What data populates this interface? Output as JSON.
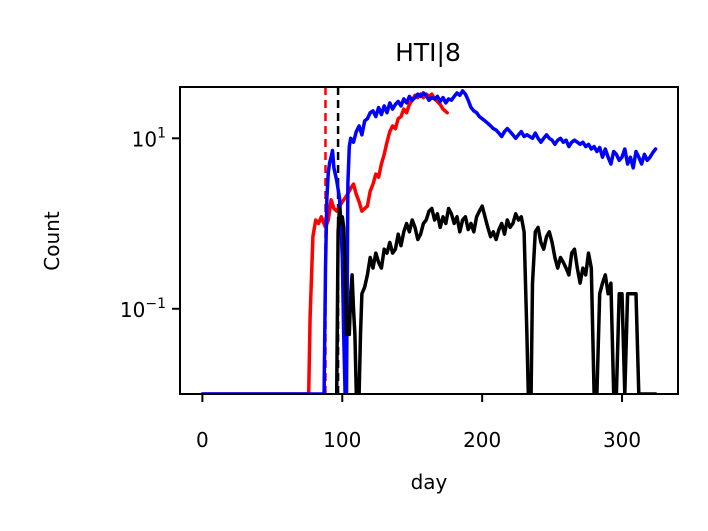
{
  "chart_data": {
    "type": "line",
    "title": "HTI|8",
    "xlabel": "day",
    "ylabel": "Count",
    "yscale": "log",
    "xlim": [
      -16,
      340
    ],
    "ylim": [
      0.01,
      40
    ],
    "x_ticks": [
      0,
      100,
      200,
      300
    ],
    "x_tick_labels": [
      "0",
      "100",
      "200",
      "300"
    ],
    "y_ticks": [
      10,
      0.1
    ],
    "y_tick_bases": [
      "10",
      "10"
    ],
    "y_tick_exps": [
      "1",
      "−1"
    ],
    "grid": false,
    "legend": "none",
    "vlines": [
      {
        "x": 88,
        "color": "#ff0000",
        "style": "dashed"
      },
      {
        "x": 97,
        "color": "#000000",
        "style": "dashed"
      }
    ],
    "series": [
      {
        "color": "#ff0000",
        "points": [
          [
            0,
            0.01
          ],
          [
            76,
            0.01
          ],
          [
            77,
            0.08
          ],
          [
            79,
            0.7
          ],
          [
            81,
            1.1
          ],
          [
            83,
            1.0
          ],
          [
            85,
            1.2
          ],
          [
            88,
            0.9
          ],
          [
            90,
            1.1
          ],
          [
            92,
            1.9
          ],
          [
            94,
            1.5
          ],
          [
            96,
            1.4
          ],
          [
            98,
            1.6
          ],
          [
            100,
            1.8
          ],
          [
            103,
            2.1
          ],
          [
            106,
            2.6
          ],
          [
            108,
            2.9
          ],
          [
            110,
            2.2
          ],
          [
            112,
            1.8
          ],
          [
            114,
            1.4
          ],
          [
            116,
            1.5
          ],
          [
            118,
            1.6
          ],
          [
            120,
            2.4
          ],
          [
            122,
            2.9
          ],
          [
            124,
            3.8
          ],
          [
            126,
            3.5
          ],
          [
            128,
            5.0
          ],
          [
            130,
            6.5
          ],
          [
            132,
            9
          ],
          [
            134,
            12
          ],
          [
            136,
            14
          ],
          [
            138,
            13
          ],
          [
            140,
            17
          ],
          [
            142,
            18
          ],
          [
            144,
            22
          ],
          [
            146,
            20
          ],
          [
            148,
            25
          ],
          [
            150,
            28
          ],
          [
            152,
            32
          ],
          [
            154,
            30
          ],
          [
            156,
            33
          ],
          [
            158,
            30
          ],
          [
            160,
            33
          ],
          [
            162,
            31
          ],
          [
            164,
            33
          ],
          [
            166,
            29
          ],
          [
            168,
            27
          ],
          [
            170,
            25
          ],
          [
            172,
            22
          ],
          [
            175,
            20
          ]
        ]
      },
      {
        "color": "#0000ff",
        "points": [
          [
            0,
            0.01
          ],
          [
            87,
            0.01
          ],
          [
            88,
            0.3
          ],
          [
            89,
            2.0
          ],
          [
            90,
            4.0
          ],
          [
            91,
            5.2
          ],
          [
            92,
            6.0
          ],
          [
            93,
            7.2
          ],
          [
            94,
            4.5
          ],
          [
            96,
            3.2
          ],
          [
            98,
            2.0
          ],
          [
            99,
            1.0
          ],
          [
            100,
            0.4
          ],
          [
            101,
            0.05
          ],
          [
            102,
            0.01
          ],
          [
            103,
            0.01
          ],
          [
            104,
            3.0
          ],
          [
            105,
            8.0
          ],
          [
            106,
            10
          ],
          [
            108,
            9.0
          ],
          [
            110,
            12
          ],
          [
            112,
            14
          ],
          [
            114,
            11
          ],
          [
            116,
            16
          ],
          [
            118,
            17
          ],
          [
            120,
            20
          ],
          [
            122,
            21
          ],
          [
            124,
            18
          ],
          [
            126,
            23
          ],
          [
            128,
            19
          ],
          [
            130,
            24
          ],
          [
            132,
            20
          ],
          [
            134,
            26
          ],
          [
            136,
            22
          ],
          [
            138,
            25
          ],
          [
            140,
            27
          ],
          [
            142,
            24
          ],
          [
            144,
            29
          ],
          [
            146,
            26
          ],
          [
            148,
            31
          ],
          [
            150,
            28
          ],
          [
            152,
            30
          ],
          [
            154,
            33
          ],
          [
            156,
            31
          ],
          [
            158,
            34
          ],
          [
            160,
            32
          ],
          [
            162,
            28
          ],
          [
            164,
            30
          ],
          [
            166,
            29
          ],
          [
            168,
            31
          ],
          [
            170,
            27
          ],
          [
            172,
            30
          ],
          [
            174,
            26
          ],
          [
            176,
            29
          ],
          [
            178,
            28
          ],
          [
            180,
            31
          ],
          [
            182,
            34
          ],
          [
            184,
            32
          ],
          [
            186,
            36
          ],
          [
            188,
            33
          ],
          [
            190,
            28
          ],
          [
            192,
            23
          ],
          [
            194,
            21
          ],
          [
            196,
            20
          ],
          [
            198,
            18
          ],
          [
            200,
            17
          ],
          [
            202,
            16
          ],
          [
            204,
            15
          ],
          [
            206,
            14
          ],
          [
            208,
            13
          ],
          [
            210,
            12.5
          ],
          [
            212,
            11.5
          ],
          [
            214,
            10.5
          ],
          [
            216,
            12
          ],
          [
            218,
            13
          ],
          [
            220,
            12
          ],
          [
            222,
            11
          ],
          [
            224,
            10
          ],
          [
            226,
            11
          ],
          [
            228,
            12
          ],
          [
            230,
            10.5
          ],
          [
            232,
            11
          ],
          [
            234,
            10.5
          ],
          [
            236,
            10
          ],
          [
            238,
            11.5
          ],
          [
            240,
            10
          ],
          [
            242,
            9.0
          ],
          [
            244,
            10
          ],
          [
            246,
            11
          ],
          [
            248,
            10
          ],
          [
            250,
            9.5
          ],
          [
            252,
            8.5
          ],
          [
            254,
            9.5
          ],
          [
            256,
            10
          ],
          [
            258,
            9.0
          ],
          [
            260,
            9.5
          ],
          [
            262,
            8.0
          ],
          [
            264,
            9.0
          ],
          [
            266,
            9.5
          ],
          [
            268,
            9.0
          ],
          [
            270,
            8.5
          ],
          [
            272,
            9.0
          ],
          [
            274,
            8.0
          ],
          [
            276,
            8.5
          ],
          [
            278,
            7.5
          ],
          [
            280,
            8.0
          ],
          [
            282,
            7.0
          ],
          [
            284,
            7.8
          ],
          [
            286,
            6.0
          ],
          [
            288,
            7.5
          ],
          [
            290,
            6.0
          ],
          [
            292,
            5.0
          ],
          [
            294,
            7.0
          ],
          [
            296,
            6.5
          ],
          [
            298,
            5.5
          ],
          [
            300,
            6.0
          ],
          [
            302,
            7.5
          ],
          [
            304,
            5.0
          ],
          [
            306,
            6.0
          ],
          [
            308,
            4.5
          ],
          [
            310,
            7.0
          ],
          [
            312,
            6.0
          ],
          [
            314,
            5.0
          ],
          [
            316,
            6.5
          ],
          [
            318,
            5.5
          ],
          [
            320,
            6.0
          ],
          [
            322,
            6.8
          ],
          [
            324,
            7.5
          ]
        ]
      },
      {
        "color": "#000000",
        "points": [
          [
            96,
            0.01
          ],
          [
            97,
            0.8
          ],
          [
            98,
            1.5
          ],
          [
            99,
            1.0
          ],
          [
            100,
            1.2
          ],
          [
            101,
            0.9
          ],
          [
            102,
            0.3
          ],
          [
            103,
            0.05
          ],
          [
            104,
            0.08
          ],
          [
            105,
            0.05
          ],
          [
            106,
            0.15
          ],
          [
            107,
            0.25
          ],
          [
            108,
            0.1
          ],
          [
            109,
            0.05
          ],
          [
            110,
            0.01
          ],
          [
            111,
            0.01
          ],
          [
            112,
            0.01
          ],
          [
            113,
            0.05
          ],
          [
            114,
            0.15
          ],
          [
            116,
            0.18
          ],
          [
            118,
            0.25
          ],
          [
            120,
            0.4
          ],
          [
            122,
            0.3
          ],
          [
            124,
            0.45
          ],
          [
            126,
            0.35
          ],
          [
            128,
            0.3
          ],
          [
            130,
            0.5
          ],
          [
            132,
            0.45
          ],
          [
            134,
            0.6
          ],
          [
            136,
            0.45
          ],
          [
            138,
            0.5
          ],
          [
            140,
            0.75
          ],
          [
            142,
            0.55
          ],
          [
            144,
            0.8
          ],
          [
            146,
            1.0
          ],
          [
            148,
            0.8
          ],
          [
            150,
            1.1
          ],
          [
            152,
            0.9
          ],
          [
            154,
            0.65
          ],
          [
            156,
            0.75
          ],
          [
            158,
            1.0
          ],
          [
            160,
            1.1
          ],
          [
            162,
            1.4
          ],
          [
            164,
            1.5
          ],
          [
            166,
            1.1
          ],
          [
            168,
            1.3
          ],
          [
            170,
            0.9
          ],
          [
            172,
            1.2
          ],
          [
            174,
            1.0
          ],
          [
            176,
            1.5
          ],
          [
            178,
            1.3
          ],
          [
            180,
            1.0
          ],
          [
            182,
            1.2
          ],
          [
            184,
            0.8
          ],
          [
            186,
            1.1
          ],
          [
            188,
            1.2
          ],
          [
            190,
            0.85
          ],
          [
            192,
            1.0
          ],
          [
            194,
            0.8
          ],
          [
            196,
            1.2
          ],
          [
            198,
            1.4
          ],
          [
            200,
            1.6
          ],
          [
            202,
            1.2
          ],
          [
            204,
            0.9
          ],
          [
            206,
            0.7
          ],
          [
            208,
            0.8
          ],
          [
            210,
            0.65
          ],
          [
            212,
            0.85
          ],
          [
            214,
            1.0
          ],
          [
            216,
            0.75
          ],
          [
            218,
            1.1
          ],
          [
            220,
            0.9
          ],
          [
            222,
            1.0
          ],
          [
            224,
            1.3
          ],
          [
            226,
            1.1
          ],
          [
            228,
            1.2
          ],
          [
            230,
            0.8
          ],
          [
            232,
            0.05
          ],
          [
            233,
            0.01
          ],
          [
            235,
            0.01
          ],
          [
            236,
            0.2
          ],
          [
            238,
            0.8
          ],
          [
            240,
            0.9
          ],
          [
            242,
            0.6
          ],
          [
            244,
            0.5
          ],
          [
            246,
            0.7
          ],
          [
            248,
            0.8
          ],
          [
            250,
            0.6
          ],
          [
            252,
            0.4
          ],
          [
            254,
            0.3
          ],
          [
            256,
            0.4
          ],
          [
            258,
            0.35
          ],
          [
            260,
            0.3
          ],
          [
            262,
            0.25
          ],
          [
            264,
            0.45
          ],
          [
            266,
            0.5
          ],
          [
            268,
            0.3
          ],
          [
            270,
            0.2
          ],
          [
            272,
            0.3
          ],
          [
            274,
            0.25
          ],
          [
            276,
            0.45
          ],
          [
            278,
            0.3
          ],
          [
            280,
            0.01
          ],
          [
            282,
            0.01
          ],
          [
            284,
            0.15
          ],
          [
            286,
            0.2
          ],
          [
            288,
            0.25
          ],
          [
            290,
            0.15
          ],
          [
            292,
            0.2
          ],
          [
            294,
            0.01
          ],
          [
            296,
            0.01
          ],
          [
            298,
            0.15
          ],
          [
            300,
            0.15
          ],
          [
            302,
            0.01
          ],
          [
            304,
            0.15
          ],
          [
            306,
            0.15
          ],
          [
            308,
            0.15
          ],
          [
            310,
            0.15
          ],
          [
            312,
            0.01
          ],
          [
            316,
            0.01
          ],
          [
            320,
            0.01
          ],
          [
            324,
            0.01
          ]
        ]
      }
    ]
  }
}
